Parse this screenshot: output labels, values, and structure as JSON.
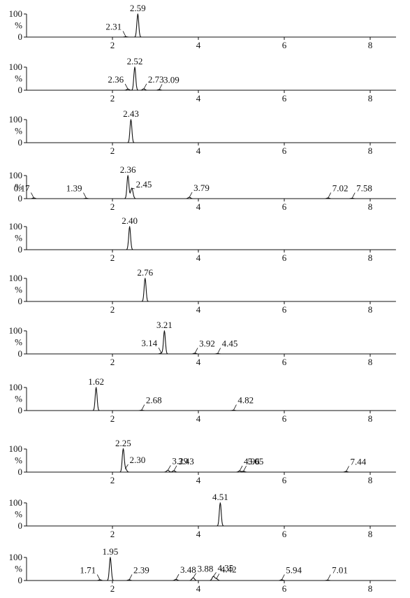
{
  "chart_data": [
    {
      "type": "line",
      "xlim": [
        0,
        8.6
      ],
      "ylim": [
        0,
        100
      ],
      "y_ticks": [
        "100",
        "%",
        "0"
      ],
      "x_ticks": [
        "2",
        "4",
        "6",
        "8"
      ],
      "trace_end": 8.6,
      "peaks": [
        {
          "rt": 2.59,
          "height": 100,
          "label": "2.59"
        },
        {
          "rt": 2.31,
          "height": 2,
          "label": "2.31"
        }
      ]
    },
    {
      "type": "line",
      "xlim": [
        0,
        8.6
      ],
      "ylim": [
        0,
        100
      ],
      "y_ticks": [
        "100",
        "%",
        "0"
      ],
      "x_ticks": [
        "2",
        "4",
        "6",
        "8"
      ],
      "trace_end": 8.6,
      "peaks": [
        {
          "rt": 2.52,
          "height": 100,
          "label": "2.52"
        },
        {
          "rt": 2.36,
          "height": 5,
          "label": "2.36"
        },
        {
          "rt": 2.73,
          "height": 6,
          "label": "2.73"
        },
        {
          "rt": 3.09,
          "height": 3,
          "label": "3.09"
        }
      ]
    },
    {
      "type": "line",
      "xlim": [
        0,
        8.6
      ],
      "ylim": [
        0,
        100
      ],
      "y_ticks": [
        "100",
        "%",
        "0"
      ],
      "x_ticks": [
        "2",
        "4",
        "6",
        "8"
      ],
      "trace_end": 2.75,
      "peaks": [
        {
          "rt": 2.43,
          "height": 100,
          "label": "2.43"
        }
      ]
    },
    {
      "type": "line",
      "xlim": [
        0,
        8.6
      ],
      "ylim": [
        0,
        100
      ],
      "y_ticks": [
        "100",
        "%",
        "0"
      ],
      "x_ticks": [
        "2",
        "4",
        "6",
        "8"
      ],
      "trace_end": 8.6,
      "peaks": [
        {
          "rt": 2.36,
          "height": 100,
          "label": "2.36"
        },
        {
          "rt": 2.45,
          "height": 45,
          "label": "2.45"
        },
        {
          "rt": 0.17,
          "height": 3,
          "label": "0.17"
        },
        {
          "rt": 1.39,
          "height": 2,
          "label": "1.39"
        },
        {
          "rt": 3.79,
          "height": 6,
          "label": "3.79"
        },
        {
          "rt": 7.02,
          "height": 3,
          "label": "7.02"
        },
        {
          "rt": 7.58,
          "height": 2,
          "label": "7.58"
        }
      ]
    },
    {
      "type": "line",
      "xlim": [
        0,
        8.6
      ],
      "ylim": [
        0,
        100
      ],
      "y_ticks": [
        "100",
        "%",
        "0"
      ],
      "x_ticks": [
        "2",
        "4",
        "6",
        "8"
      ],
      "trace_end": 7.95,
      "peaks": [
        {
          "rt": 2.4,
          "height": 100,
          "label": "2.40"
        }
      ]
    },
    {
      "type": "line",
      "xlim": [
        0,
        8.6
      ],
      "ylim": [
        0,
        100
      ],
      "y_ticks": [
        "100",
        "%",
        "0"
      ],
      "x_ticks": [
        "2",
        "4",
        "6",
        "8"
      ],
      "trace_end": 5.0,
      "peaks": [
        {
          "rt": 2.76,
          "height": 100,
          "label": "2.76"
        }
      ]
    },
    {
      "type": "line",
      "xlim": [
        0,
        8.6
      ],
      "ylim": [
        0,
        100
      ],
      "y_ticks": [
        "100",
        "%",
        "0"
      ],
      "x_ticks": [
        "2",
        "4",
        "6",
        "8"
      ],
      "trace_end": 8.6,
      "peaks": [
        {
          "rt": 3.21,
          "height": 100,
          "label": "3.21"
        },
        {
          "rt": 3.14,
          "height": 4,
          "label": "3.14"
        },
        {
          "rt": 3.92,
          "height": 3,
          "label": "3.92"
        },
        {
          "rt": 4.45,
          "height": 2,
          "label": "4.45"
        }
      ]
    },
    {
      "type": "line",
      "xlim": [
        0,
        8.6
      ],
      "ylim": [
        0,
        100
      ],
      "y_ticks": [
        "100",
        "%",
        "0"
      ],
      "x_ticks": [
        "2",
        "4",
        "6",
        "8"
      ],
      "trace_end": 8.6,
      "peaks": [
        {
          "rt": 1.62,
          "height": 100,
          "label": "1.62"
        },
        {
          "rt": 2.68,
          "height": 2,
          "label": "2.68"
        },
        {
          "rt": 4.82,
          "height": 2,
          "label": "4.82"
        }
      ]
    },
    {
      "type": "line",
      "xlim": [
        0,
        8.6
      ],
      "ylim": [
        0,
        100
      ],
      "y_ticks": [
        "100",
        "%",
        "0"
      ],
      "x_ticks": [
        "2",
        "4",
        "6",
        "8"
      ],
      "trace_end": 8.0,
      "peaks": [
        {
          "rt": 2.25,
          "height": 100,
          "label": "2.25"
        },
        {
          "rt": 2.3,
          "height": 15,
          "label": "2.30"
        },
        {
          "rt": 3.29,
          "height": 8,
          "label": "3.29"
        },
        {
          "rt": 3.43,
          "height": 6,
          "label": "3.43"
        },
        {
          "rt": 4.96,
          "height": 5,
          "label": "4.96"
        },
        {
          "rt": 5.05,
          "height": 4,
          "label": "5.05"
        },
        {
          "rt": 7.44,
          "height": 3,
          "label": "7.44"
        }
      ]
    },
    {
      "type": "line",
      "xlim": [
        0,
        8.6
      ],
      "ylim": [
        0,
        100
      ],
      "y_ticks": [
        "100",
        "%",
        "0"
      ],
      "x_ticks": [
        "2",
        "4",
        "6",
        "8"
      ],
      "trace_end": 7.95,
      "peaks": [
        {
          "rt": 4.51,
          "height": 100,
          "label": "4.51"
        }
      ]
    },
    {
      "type": "line",
      "xlim": [
        0,
        8.6
      ],
      "ylim": [
        0,
        100
      ],
      "y_ticks": [
        "100",
        "%",
        "0"
      ],
      "x_ticks": [
        "2",
        "4",
        "6",
        "8"
      ],
      "trace_end": 8.6,
      "peaks": [
        {
          "rt": 1.95,
          "height": 100,
          "label": "1.95"
        },
        {
          "rt": 1.71,
          "height": 3,
          "label": "1.71"
        },
        {
          "rt": 2.39,
          "height": 3,
          "label": "2.39"
        },
        {
          "rt": 3.48,
          "height": 5,
          "label": "3.48"
        },
        {
          "rt": 3.88,
          "height": 12,
          "label": "3.88"
        },
        {
          "rt": 4.35,
          "height": 18,
          "label": "4.35"
        },
        {
          "rt": 4.42,
          "height": 8,
          "label": "4.42"
        },
        {
          "rt": 5.94,
          "height": 3,
          "label": "5.94"
        },
        {
          "rt": 7.01,
          "height": 2,
          "label": "7.01"
        }
      ]
    }
  ]
}
